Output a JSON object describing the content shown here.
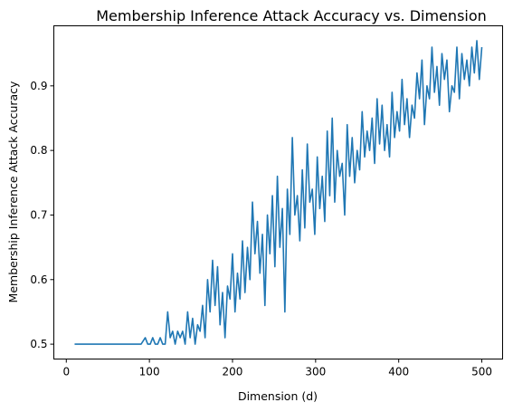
{
  "chart_data": {
    "type": "line",
    "title": "Membership Inference Attack Accuracy vs. Dimension",
    "xlabel": "Dimension (d)",
    "ylabel": "Membership Inference Attack Accuracy",
    "xlim": [
      -15,
      525
    ],
    "ylim": [
      0.477,
      0.993
    ],
    "xticks": [
      0,
      100,
      200,
      300,
      400,
      500
    ],
    "xtick_labels": [
      "0",
      "100",
      "200",
      "300",
      "400",
      "500"
    ],
    "yticks": [
      0.5,
      0.6,
      0.7,
      0.8,
      0.9
    ],
    "ytick_labels": [
      "0.5",
      "0.6",
      "0.7",
      "0.8",
      "0.9"
    ],
    "grid": false,
    "series": [
      {
        "color": "#1f77b4",
        "x": [
          10,
          30,
          50,
          70,
          90,
          95,
          98,
          101,
          104,
          107,
          110,
          113,
          116,
          119,
          122,
          125,
          128,
          131,
          134,
          137,
          140,
          143,
          146,
          149,
          152,
          155,
          158,
          161,
          164,
          167,
          170,
          173,
          176,
          179,
          182,
          185,
          188,
          191,
          194,
          197,
          200,
          203,
          206,
          209,
          212,
          215,
          218,
          221,
          224,
          227,
          230,
          233,
          236,
          239,
          242,
          245,
          248,
          251,
          254,
          257,
          260,
          263,
          266,
          269,
          272,
          275,
          278,
          281,
          284,
          287,
          290,
          293,
          296,
          299,
          302,
          305,
          308,
          311,
          314,
          317,
          320,
          323,
          326,
          329,
          332,
          335,
          338,
          341,
          344,
          347,
          350,
          353,
          356,
          359,
          362,
          365,
          368,
          371,
          374,
          377,
          380,
          383,
          386,
          389,
          392,
          395,
          398,
          401,
          404,
          407,
          410,
          413,
          416,
          419,
          422,
          425,
          428,
          431,
          434,
          437,
          440,
          443,
          446,
          449,
          452,
          455,
          458,
          461,
          464,
          467,
          470,
          473,
          476,
          479,
          482,
          485,
          488,
          491,
          494,
          497,
          500
        ],
        "y": [
          0.5,
          0.5,
          0.5,
          0.5,
          0.5,
          0.51,
          0.5,
          0.5,
          0.51,
          0.5,
          0.5,
          0.51,
          0.5,
          0.5,
          0.55,
          0.51,
          0.52,
          0.5,
          0.52,
          0.51,
          0.52,
          0.5,
          0.55,
          0.51,
          0.54,
          0.5,
          0.53,
          0.52,
          0.56,
          0.51,
          0.6,
          0.55,
          0.63,
          0.56,
          0.62,
          0.53,
          0.58,
          0.51,
          0.59,
          0.57,
          0.64,
          0.55,
          0.61,
          0.57,
          0.66,
          0.58,
          0.65,
          0.6,
          0.72,
          0.64,
          0.69,
          0.61,
          0.67,
          0.56,
          0.7,
          0.64,
          0.73,
          0.62,
          0.76,
          0.65,
          0.71,
          0.55,
          0.74,
          0.67,
          0.82,
          0.7,
          0.73,
          0.66,
          0.77,
          0.68,
          0.81,
          0.72,
          0.74,
          0.67,
          0.79,
          0.71,
          0.76,
          0.69,
          0.83,
          0.73,
          0.85,
          0.72,
          0.8,
          0.76,
          0.78,
          0.7,
          0.84,
          0.76,
          0.82,
          0.75,
          0.8,
          0.77,
          0.86,
          0.79,
          0.83,
          0.8,
          0.85,
          0.78,
          0.88,
          0.81,
          0.87,
          0.8,
          0.84,
          0.79,
          0.89,
          0.82,
          0.86,
          0.83,
          0.91,
          0.84,
          0.88,
          0.82,
          0.87,
          0.85,
          0.92,
          0.88,
          0.94,
          0.84,
          0.9,
          0.88,
          0.96,
          0.89,
          0.93,
          0.87,
          0.95,
          0.91,
          0.94,
          0.86,
          0.9,
          0.89,
          0.96,
          0.88,
          0.95,
          0.91,
          0.94,
          0.9,
          0.96,
          0.92,
          0.97,
          0.91,
          0.96
        ]
      }
    ]
  }
}
